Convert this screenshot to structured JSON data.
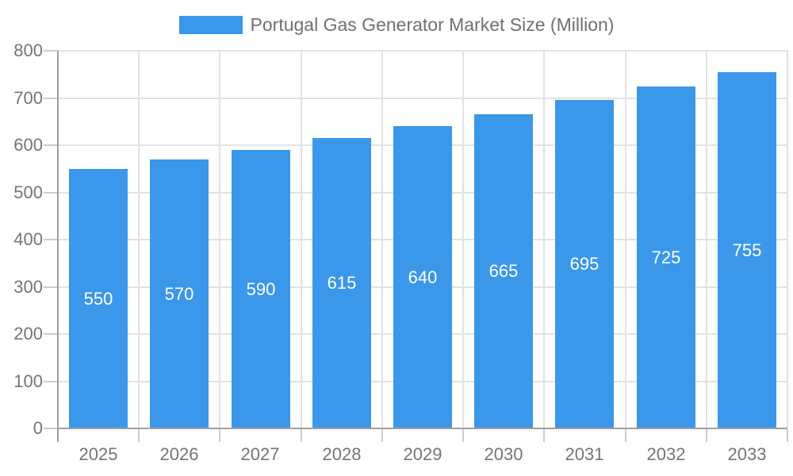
{
  "chart_data": {
    "type": "bar",
    "title": "Portugal Gas Generator Market Size (Million)",
    "xlabel": "",
    "ylabel": "",
    "categories": [
      "2025",
      "2026",
      "2027",
      "2028",
      "2029",
      "2030",
      "2031",
      "2032",
      "2033"
    ],
    "series": [
      {
        "name": "Portugal Gas Generator Market Size (Million)",
        "values": [
          550,
          570,
          590,
          615,
          640,
          665,
          695,
          725,
          755
        ]
      }
    ],
    "value_labels_shown": true,
    "ylim": [
      0,
      800
    ],
    "yticks": [
      0,
      100,
      200,
      300,
      400,
      500,
      600,
      700,
      800
    ],
    "grid": "on",
    "legend_position": "top-center",
    "colors": {
      "bar": "#3B97EA",
      "value_label": "#ffffff",
      "axis_label": "#757575",
      "title": "#707070",
      "gridline": "#e2e2e2",
      "tick": "#cccccc",
      "axis_line": "#a0a0a0",
      "background": "#ffffff"
    }
  }
}
